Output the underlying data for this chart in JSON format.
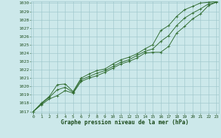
{
  "title": "Graphe pression niveau de la mer (hPa)",
  "hours": [
    0,
    1,
    2,
    3,
    4,
    5,
    6,
    7,
    8,
    9,
    10,
    11,
    12,
    13,
    14,
    15,
    16,
    17,
    18,
    19,
    20,
    21,
    22,
    23
  ],
  "line_min": [
    1017.0,
    1017.8,
    1018.5,
    1018.9,
    1019.5,
    1019.2,
    1020.6,
    1021.0,
    1021.3,
    1021.7,
    1022.2,
    1022.7,
    1023.0,
    1023.4,
    1024.0,
    1024.1,
    1024.1,
    1024.8,
    1026.4,
    1027.2,
    1028.1,
    1028.7,
    1029.7,
    1030.1
  ],
  "line_max": [
    1017.0,
    1018.0,
    1018.8,
    1020.2,
    1020.3,
    1019.4,
    1021.0,
    1021.5,
    1021.9,
    1022.1,
    1022.7,
    1023.2,
    1023.5,
    1023.9,
    1024.5,
    1025.0,
    1026.7,
    1027.3,
    1028.4,
    1029.2,
    1029.6,
    1030.0,
    1030.1,
    1030.2
  ],
  "line_mean": [
    1017.0,
    1017.9,
    1018.7,
    1019.6,
    1019.9,
    1019.3,
    1020.8,
    1021.2,
    1021.6,
    1021.9,
    1022.4,
    1022.9,
    1023.2,
    1023.7,
    1024.2,
    1024.5,
    1025.4,
    1026.1,
    1027.3,
    1028.2,
    1028.8,
    1029.3,
    1029.9,
    1030.1
  ],
  "ylim_min": 1017,
  "ylim_max": 1030,
  "yticks": [
    1017,
    1018,
    1019,
    1020,
    1021,
    1022,
    1023,
    1024,
    1025,
    1026,
    1027,
    1028,
    1029,
    1030
  ],
  "line_color": "#2d6a2d",
  "bg_color": "#cce8ea",
  "grid_color": "#a0c8cc",
  "text_color": "#1a4a1a",
  "marker_size": 2.5,
  "line_width": 0.7,
  "tick_fontsize": 4.5,
  "title_fontsize": 5.8
}
